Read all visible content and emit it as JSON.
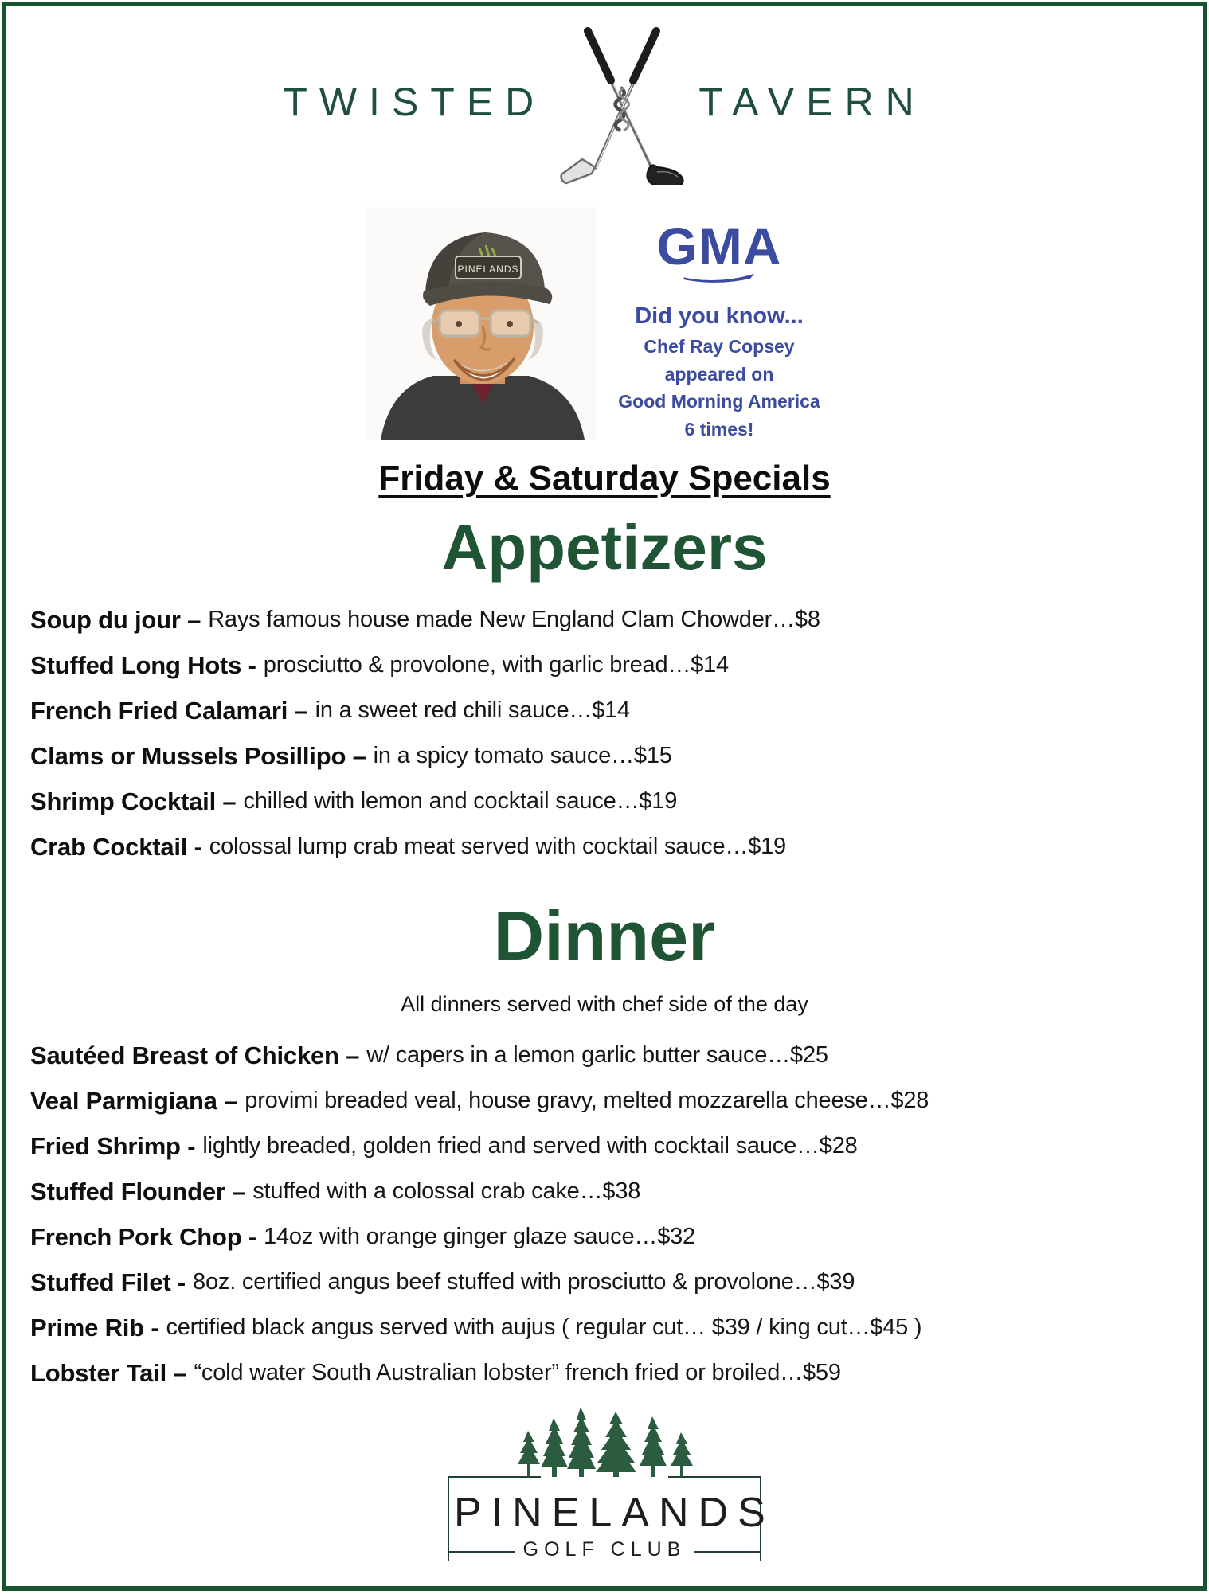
{
  "colors": {
    "frame_border": "#17532f",
    "heading_green": "#1f5434",
    "brand_green": "#1f4f3d",
    "gma_blue": "#3b4b9f"
  },
  "header": {
    "brand_left": "TWISTED",
    "brand_right": "TAVERN"
  },
  "promo": {
    "photo_cap_text": "PINELANDS",
    "gma": {
      "logo": "GMA",
      "lines": [
        "Did you know...",
        "Chef Ray Copsey",
        "appeared on",
        "Good Morning America",
        "6 times!"
      ]
    }
  },
  "specials_title": "Friday & Saturday Specials",
  "sections": [
    {
      "title": "Appetizers",
      "note": "",
      "items": [
        {
          "name": "Soup du jour –",
          "desc": "Rays famous house made New England Clam Chowder…$8"
        },
        {
          "name": "Stuffed Long Hots -",
          "desc": "prosciutto & provolone, with garlic bread…$14"
        },
        {
          "name": "French Fried Calamari –",
          "desc": "in a sweet red chili sauce…$14"
        },
        {
          "name": "Clams or Mussels Posillipo –",
          "desc": "in a spicy tomato sauce…$15"
        },
        {
          "name": "Shrimp Cocktail –",
          "desc": "chilled with lemon and cocktail sauce…$19"
        },
        {
          "name": "Crab Cocktail -",
          "desc": "colossal lump crab meat served with cocktail sauce…$19"
        }
      ]
    },
    {
      "title": "Dinner",
      "note": "All dinners served with chef side of the day",
      "items": [
        {
          "name": "Sautéed Breast of Chicken –",
          "desc": "w/ capers in a lemon garlic butter sauce…$25"
        },
        {
          "name": "Veal Parmigiana –",
          "desc": "provimi breaded veal, house gravy, melted mozzarella cheese…$28"
        },
        {
          "name": "Fried Shrimp -",
          "desc": "lightly breaded, golden fried and served with cocktail sauce…$28"
        },
        {
          "name": "Stuffed Flounder –",
          "desc": "stuffed with a colossal crab cake…$38"
        },
        {
          "name": "French Pork Chop -",
          "desc": "14oz with orange ginger glaze sauce…$32"
        },
        {
          "name": "Stuffed Filet -",
          "desc": "8oz. certified angus beef stuffed with prosciutto & provolone…$39"
        },
        {
          "name": "Prime Rib -",
          "desc": "certified black angus served with aujus ( regular cut… $39  /  king cut…$45 )"
        },
        {
          "name": "Lobster Tail –",
          "desc": "“cold water South Australian lobster” french fried or broiled…$59"
        }
      ]
    }
  ],
  "footer": {
    "club_name": "PINELANDS",
    "club_sub": "GOLF CLUB"
  }
}
